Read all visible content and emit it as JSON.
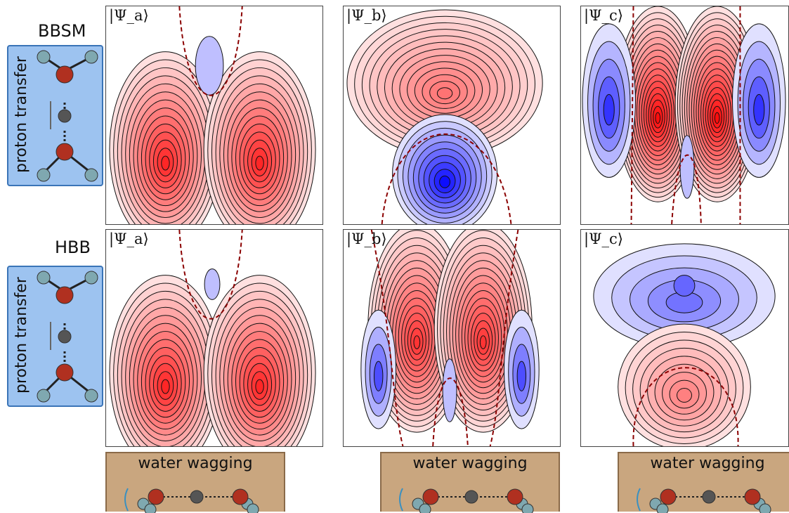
{
  "rows": [
    {
      "title": "BBSM",
      "side_label": "proton transfer"
    },
    {
      "title": "HBB",
      "side_label": "proton transfer"
    }
  ],
  "panels": [
    {
      "label": "|Ψ_a⟩",
      "state": "a"
    },
    {
      "label": "|Ψ_b⟩",
      "state": "b"
    },
    {
      "label": "|Ψ_c⟩",
      "state": "c"
    },
    {
      "label": "|Ψ_a⟩",
      "state": "a"
    },
    {
      "label": "|Ψ_b⟩",
      "state": "b"
    },
    {
      "label": "|Ψ_c⟩",
      "state": "c"
    }
  ],
  "bottom_labels": [
    "water wagging",
    "water wagging",
    "water wagging"
  ],
  "colors": {
    "positive": "#ff0000",
    "negative": "#0000ff",
    "node_line": "#8b0000",
    "side_box": "#9dc3f0",
    "side_border": "#3a74b7",
    "wag_box": "#c9a67f",
    "wag_border": "#8a6a49",
    "oxygen": "#b03020",
    "hydrogen": "#7fa8b0",
    "proton": "#555555"
  }
}
